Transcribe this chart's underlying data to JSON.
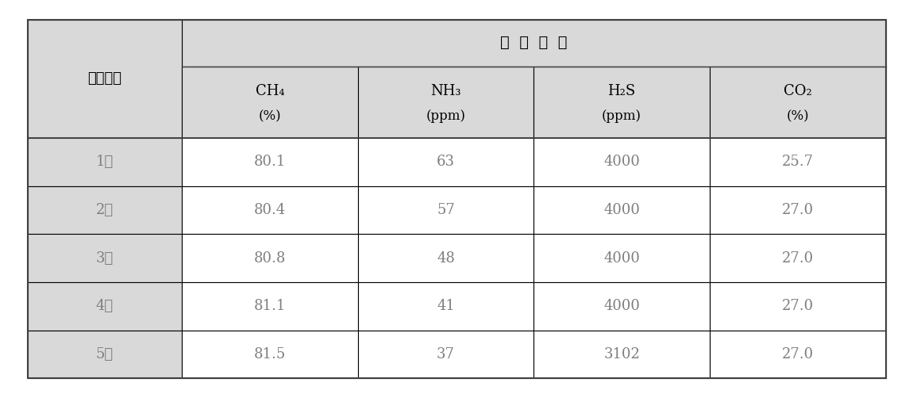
{
  "header_row1_col0": "측정횟수",
  "header_row1_merged": "분  석  항  목",
  "col_headers": [
    "CH₄\n\n(%)",
    "NH₃\n\n(ppm)",
    "H₂S\n\n(ppm)",
    "CO₂\n\n(%)"
  ],
  "col_headers_line1": [
    "CH₄",
    "NH₃",
    "H₂S",
    "CO₂"
  ],
  "col_headers_line2": [
    "(%)",
    "(ppm)",
    "(ppm)",
    "(%)"
  ],
  "row_labels": [
    "1회",
    "2회",
    "3회",
    "4회",
    "5회"
  ],
  "data": [
    [
      "80.1",
      "63",
      "4000",
      "25.7"
    ],
    [
      "80.4",
      "57",
      "4000",
      "27.0"
    ],
    [
      "80.8",
      "48",
      "4000",
      "27.0"
    ],
    [
      "81.1",
      "41",
      "4000",
      "27.0"
    ],
    [
      "81.5",
      "37",
      "3102",
      "27.0"
    ]
  ],
  "header_bg": "#d9d9d9",
  "data_bg": "#ffffff",
  "header_text_color": "#000000",
  "data_text_color": "#7f7f7f",
  "row_label_color": "#7f7f7f",
  "border_color": "#000000",
  "outer_border_color": "#404040",
  "font_size_header": 13,
  "font_size_data": 13,
  "font_size_merged": 14
}
